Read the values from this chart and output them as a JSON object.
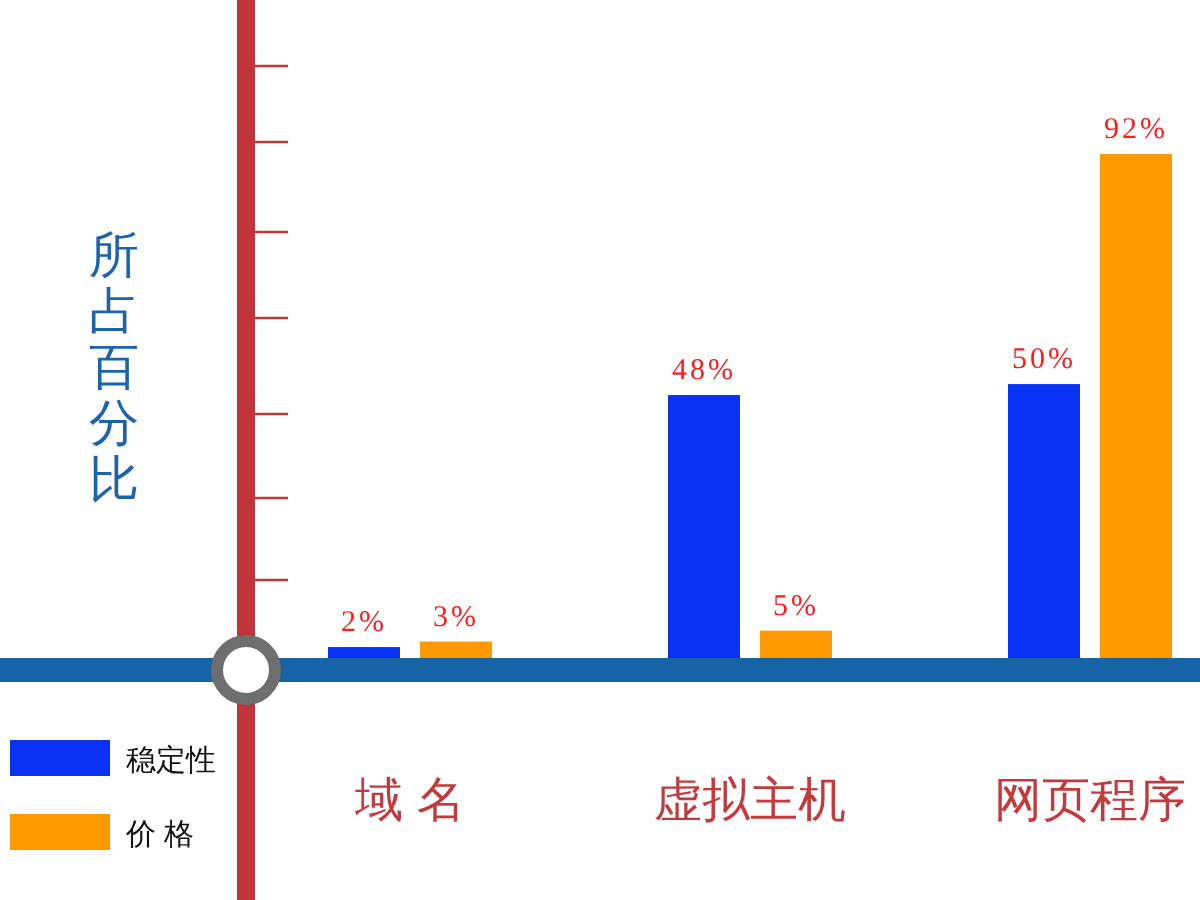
{
  "chart_data": {
    "type": "bar",
    "ylabel": "所占百分比",
    "categories": [
      "域 名",
      "虚拟主机",
      "网页程序"
    ],
    "series": [
      {
        "name": "稳定性",
        "color": "#0a32f5",
        "values": [
          2,
          48,
          50
        ],
        "value_labels": [
          "2%",
          "48%",
          "50%"
        ]
      },
      {
        "name": "价 格",
        "color": "#ff9900",
        "values": [
          3,
          5,
          92
        ],
        "value_labels": [
          "3%",
          "5%",
          "92%"
        ]
      }
    ],
    "tick_labels": "x",
    "legend": "bottom left"
  }
}
